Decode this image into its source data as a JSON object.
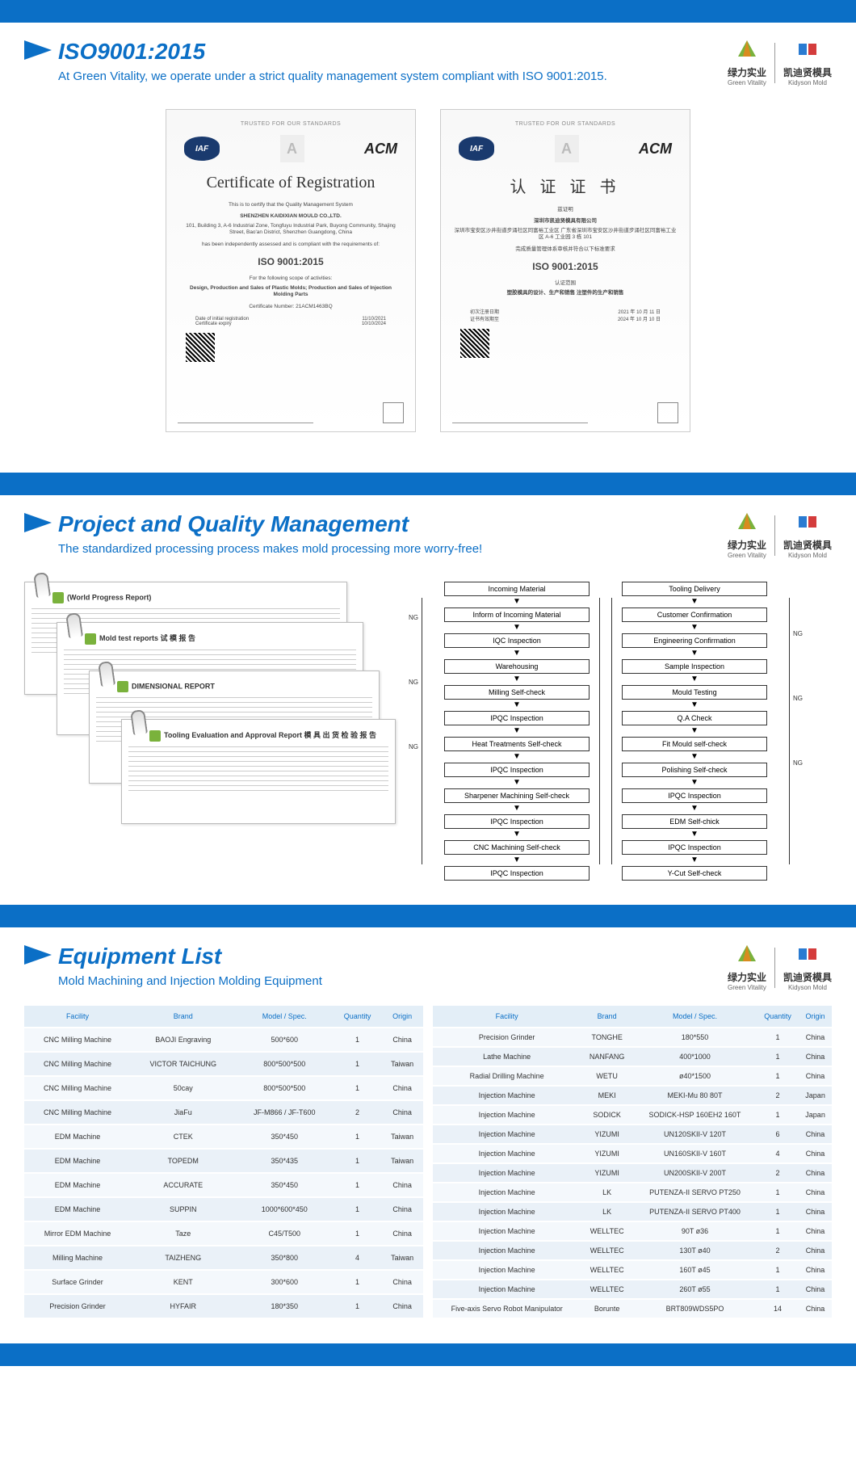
{
  "brand": {
    "left": {
      "cn": "绿力实业",
      "en": "Green Vitality"
    },
    "right": {
      "cn": "凯迪贤模具",
      "en": "Kidyson Mold"
    }
  },
  "section1": {
    "title": "ISO9001:2015",
    "subtitle": "At Green Vitality, we operate under a strict quality management system compliant with ISO 9001:2015.",
    "cert_topline": "TRUSTED FOR OUR STANDARDS",
    "cert_en": {
      "main": "Certificate of Registration",
      "intro": "This is to certify that the Quality Management System",
      "company": "SHENZHEN KAIDIXIAN MOULD CO.,LTD.",
      "addr": "101, Building 3, A-6 Industrial Zone, Tongfuyu Industrial Park, Buyong Community, Shajing Street, Bao'an District, Shenzhen Guangdong, China",
      "assessed": "has been independently assessed and is compliant with the requirements of:",
      "iso": "ISO 9001:2015",
      "scope_label": "For the following scope of activities:",
      "scope": "Design, Production and Sales of Plastic Molds; Production and Sales of Injection Molding Parts",
      "certno": "Certificate Number: 21ACM1463BQ",
      "date1": "Date of initial registration",
      "date1v": "11/10/2021",
      "date2": "Certificate expiry",
      "date2v": "10/10/2024"
    },
    "cert_cn": {
      "main": "认   证   证   书",
      "intro": "兹证明",
      "company": "深圳市凯迪贤模具有限公司",
      "addr": "深圳市宝安区沙井街道步涌社区同富裕工业区 广东省深圳市宝安区沙井街道步涌社区同富裕工业区 A-6 工业园 3 栋 101",
      "assessed": "完成质量管理体系审核并符合以下标准要求",
      "iso": "ISO 9001:2015",
      "scope_label": "认证范围",
      "scope": "塑胶模具的设计、生产和销售 注塑件的生产和销售",
      "date1": "初次注册日期",
      "date1v": "2021 年 10 月 11 日",
      "date2": "证书有效期至",
      "date2v": "2024 年 10 月 10 日"
    }
  },
  "section2": {
    "title": "Project and Quality Management",
    "subtitle": "The standardized processing process makes mold processing more worry-free!",
    "reports": [
      "(World Progress Report)",
      "Mold test reports 试 模 报 告",
      "DIMENSIONAL REPORT",
      "Tooling Evaluation and Approval Report 模 具 出 货 检 验 报 告"
    ],
    "flow_left": [
      "Incoming Material",
      "Inform of Incoming Material",
      "IQC Inspection",
      "Warehousing",
      "Milling Self-check",
      "IPQC Inspection",
      "Heat Treatments Self-check",
      "IPQC Inspection",
      "Sharpener Machining Self-check",
      "IPQC Inspection",
      "CNC Machining Self-check",
      "IPQC Inspection"
    ],
    "flow_right": [
      "Tooling Delivery",
      "Customer Confirmation",
      "Engineering Confirmation",
      "Sample Inspection",
      "Mould Testing",
      "Q.A Check",
      "Fit Mould self-check",
      "Polishing Self-check",
      "IPQC Inspection",
      "EDM Self-chick",
      "IPQC Inspection",
      "Y-Cut Self-check"
    ],
    "ng": "NG"
  },
  "section3": {
    "title": "Equipment List",
    "subtitle": "Mold Machining and Injection Molding Equipment",
    "columns": [
      "Facility",
      "Brand",
      "Model / Spec.",
      "Quantity",
      "Origin"
    ],
    "table_left": [
      [
        "CNC Milling Machine",
        "BAOJI Engraving",
        "500*600",
        "1",
        "China"
      ],
      [
        "CNC Milling Machine",
        "VICTOR TAICHUNG",
        "800*500*500",
        "1",
        "Taiwan"
      ],
      [
        "CNC Milling Machine",
        "50cay",
        "800*500*500",
        "1",
        "China"
      ],
      [
        "CNC Milling Machine",
        "JiaFu",
        "JF-M866 / JF-T600",
        "2",
        "China"
      ],
      [
        "EDM Machine",
        "CTEK",
        "350*450",
        "1",
        "Taiwan"
      ],
      [
        "EDM Machine",
        "TOPEDM",
        "350*435",
        "1",
        "Taiwan"
      ],
      [
        "EDM Machine",
        "ACCURATE",
        "350*450",
        "1",
        "China"
      ],
      [
        "EDM Machine",
        "SUPPIN",
        "1000*600*450",
        "1",
        "China"
      ],
      [
        "Mirror EDM Machine",
        "Taze",
        "C45/T500",
        "1",
        "China"
      ],
      [
        "Milling Machine",
        "TAIZHENG",
        "350*800",
        "4",
        "Taiwan"
      ],
      [
        "Surface Grinder",
        "KENT",
        "300*600",
        "1",
        "China"
      ],
      [
        "Precision Grinder",
        "HYFAIR",
        "180*350",
        "1",
        "China"
      ]
    ],
    "table_right": [
      [
        "Precision Grinder",
        "TONGHE",
        "180*550",
        "1",
        "China"
      ],
      [
        "Lathe Machine",
        "NANFANG",
        "400*1000",
        "1",
        "China"
      ],
      [
        "Radial Drilling Machine",
        "WETU",
        "ø40*1500",
        "1",
        "China"
      ],
      [
        "Injection Machine",
        "MEKI",
        "MEKI-Mu 80 80T",
        "2",
        "Japan"
      ],
      [
        "Injection Machine",
        "SODICK",
        "SODICK-HSP 160EH2 160T",
        "1",
        "Japan"
      ],
      [
        "Injection Machine",
        "YIZUMI",
        "UN120SKII-V 120T",
        "6",
        "China"
      ],
      [
        "Injection Machine",
        "YIZUMI",
        "UN160SKII-V 160T",
        "4",
        "China"
      ],
      [
        "Injection Machine",
        "YIZUMI",
        "UN200SKII-V 200T",
        "2",
        "China"
      ],
      [
        "Injection Machine",
        "LK",
        "PUTENZA-II SERVO PT250",
        "1",
        "China"
      ],
      [
        "Injection Machine",
        "LK",
        "PUTENZA-II SERVO PT400",
        "1",
        "China"
      ],
      [
        "Injection Machine",
        "WELLTEC",
        "90T ø36",
        "1",
        "China"
      ],
      [
        "Injection Machine",
        "WELLTEC",
        "130T ø40",
        "2",
        "China"
      ],
      [
        "Injection Machine",
        "WELLTEC",
        "160T ø45",
        "1",
        "China"
      ],
      [
        "Injection Machine",
        "WELLTEC",
        "260T ø55",
        "1",
        "China"
      ],
      [
        "Five-axis Servo Robot Manipulator",
        "Borunte",
        "BRT809WDS5PO",
        "14",
        "China"
      ]
    ]
  }
}
